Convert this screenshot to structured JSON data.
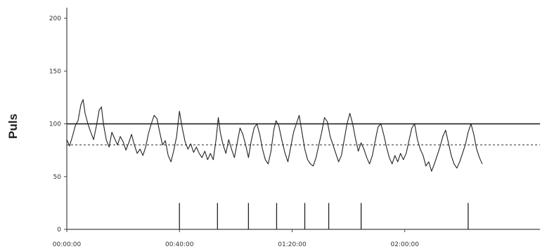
{
  "chart_data": {
    "type": "line",
    "title": "",
    "xlabel": "",
    "ylabel": "Puls",
    "ylim": [
      0,
      210
    ],
    "xlim_minutes": [
      0,
      168
    ],
    "y_ticks": [
      {
        "value": 0,
        "label": "0"
      },
      {
        "value": 50,
        "label": "50"
      },
      {
        "value": 100,
        "label": "100"
      },
      {
        "value": 150,
        "label": "150"
      },
      {
        "value": 200,
        "label": "200"
      }
    ],
    "x_ticks": [
      {
        "minutes": 0,
        "label": "00:00:00"
      },
      {
        "minutes": 40,
        "label": "00:40:00"
      },
      {
        "minutes": 80,
        "label": "01:20:00"
      },
      {
        "minutes": 120,
        "label": "02:00:00"
      }
    ],
    "reference_lines": [
      {
        "value": 100,
        "style": "solid"
      },
      {
        "value": 80,
        "style": "dashed"
      }
    ],
    "event_markers_minutes": [
      40,
      53.5,
      64.5,
      74.5,
      84.5,
      93,
      104.5,
      142.5
    ],
    "event_marker_height": 25,
    "series": [
      {
        "points": [
          [
            0,
            85
          ],
          [
            1,
            79
          ],
          [
            2,
            88
          ],
          [
            3,
            98
          ],
          [
            4,
            103
          ],
          [
            5,
            118
          ],
          [
            5.8,
            123
          ],
          [
            6.5,
            110
          ],
          [
            7.5,
            100
          ],
          [
            8.5,
            92
          ],
          [
            9.5,
            85
          ],
          [
            10.5,
            98
          ],
          [
            11.5,
            113
          ],
          [
            12.3,
            116
          ],
          [
            13,
            100
          ],
          [
            14,
            85
          ],
          [
            15,
            78
          ],
          [
            16,
            92
          ],
          [
            17,
            86
          ],
          [
            18,
            80
          ],
          [
            19,
            88
          ],
          [
            20,
            83
          ],
          [
            21,
            75
          ],
          [
            22,
            82
          ],
          [
            23,
            90
          ],
          [
            24,
            80
          ],
          [
            25,
            72
          ],
          [
            26,
            76
          ],
          [
            27,
            70
          ],
          [
            28,
            78
          ],
          [
            29,
            91
          ],
          [
            30,
            100
          ],
          [
            31,
            108
          ],
          [
            32,
            105
          ],
          [
            33,
            92
          ],
          [
            34,
            80
          ],
          [
            35,
            84
          ],
          [
            36,
            70
          ],
          [
            37,
            64
          ],
          [
            38,
            75
          ],
          [
            39,
            88
          ],
          [
            40,
            112
          ],
          [
            41,
            96
          ],
          [
            42,
            83
          ],
          [
            43,
            76
          ],
          [
            44,
            81
          ],
          [
            45,
            73
          ],
          [
            46,
            78
          ],
          [
            47,
            72
          ],
          [
            48,
            68
          ],
          [
            49,
            74
          ],
          [
            50,
            66
          ],
          [
            51,
            72
          ],
          [
            52,
            66
          ],
          [
            53,
            85
          ],
          [
            53.8,
            106
          ],
          [
            54.5,
            92
          ],
          [
            55.5,
            80
          ],
          [
            56.5,
            72
          ],
          [
            57.5,
            85
          ],
          [
            58.5,
            76
          ],
          [
            59.5,
            68
          ],
          [
            60.5,
            82
          ],
          [
            61.5,
            96
          ],
          [
            62.5,
            90
          ],
          [
            63.5,
            80
          ],
          [
            64.5,
            68
          ],
          [
            65.5,
            84
          ],
          [
            66.5,
            96
          ],
          [
            67.5,
            100
          ],
          [
            68.5,
            90
          ],
          [
            69.5,
            76
          ],
          [
            70.5,
            66
          ],
          [
            71.5,
            62
          ],
          [
            72.5,
            74
          ],
          [
            73.5,
            94
          ],
          [
            74.3,
            103
          ],
          [
            75.3,
            98
          ],
          [
            76.3,
            85
          ],
          [
            77.5,
            72
          ],
          [
            78.5,
            64
          ],
          [
            79.5,
            78
          ],
          [
            80.5,
            92
          ],
          [
            81.5,
            100
          ],
          [
            82.5,
            108
          ],
          [
            83.5,
            92
          ],
          [
            84.5,
            76
          ],
          [
            85.5,
            66
          ],
          [
            86.5,
            62
          ],
          [
            87.5,
            60
          ],
          [
            88.5,
            68
          ],
          [
            89.5,
            80
          ],
          [
            90.5,
            92
          ],
          [
            91.5,
            106
          ],
          [
            92.5,
            102
          ],
          [
            93.5,
            88
          ],
          [
            94.5,
            80
          ],
          [
            95.5,
            72
          ],
          [
            96.5,
            64
          ],
          [
            97.5,
            70
          ],
          [
            98.5,
            85
          ],
          [
            99.5,
            100
          ],
          [
            100.5,
            110
          ],
          [
            101.5,
            100
          ],
          [
            102.5,
            86
          ],
          [
            103.5,
            74
          ],
          [
            104.5,
            82
          ],
          [
            105.5,
            76
          ],
          [
            106.5,
            68
          ],
          [
            107.5,
            62
          ],
          [
            108.5,
            70
          ],
          [
            109.5,
            84
          ],
          [
            110.5,
            97
          ],
          [
            111.5,
            100
          ],
          [
            112.5,
            90
          ],
          [
            113.5,
            78
          ],
          [
            114.5,
            68
          ],
          [
            115.5,
            62
          ],
          [
            116.5,
            70
          ],
          [
            117.5,
            64
          ],
          [
            118.5,
            72
          ],
          [
            119.5,
            66
          ],
          [
            120.5,
            72
          ],
          [
            121.5,
            84
          ],
          [
            122.5,
            96
          ],
          [
            123.5,
            100
          ],
          [
            124.5,
            85
          ],
          [
            125.5,
            76
          ],
          [
            126.5,
            70
          ],
          [
            127.5,
            60
          ],
          [
            128.5,
            64
          ],
          [
            129.5,
            55
          ],
          [
            130.5,
            62
          ],
          [
            131.5,
            70
          ],
          [
            132.5,
            78
          ],
          [
            133.5,
            88
          ],
          [
            134.5,
            94
          ],
          [
            135.5,
            82
          ],
          [
            136.5,
            70
          ],
          [
            137.5,
            62
          ],
          [
            138.5,
            58
          ],
          [
            139.5,
            64
          ],
          [
            140.5,
            72
          ],
          [
            141.5,
            80
          ],
          [
            142.5,
            92
          ],
          [
            143.5,
            100
          ],
          [
            144.5,
            90
          ],
          [
            145.5,
            76
          ],
          [
            146.5,
            68
          ],
          [
            147.5,
            62
          ]
        ]
      }
    ]
  }
}
